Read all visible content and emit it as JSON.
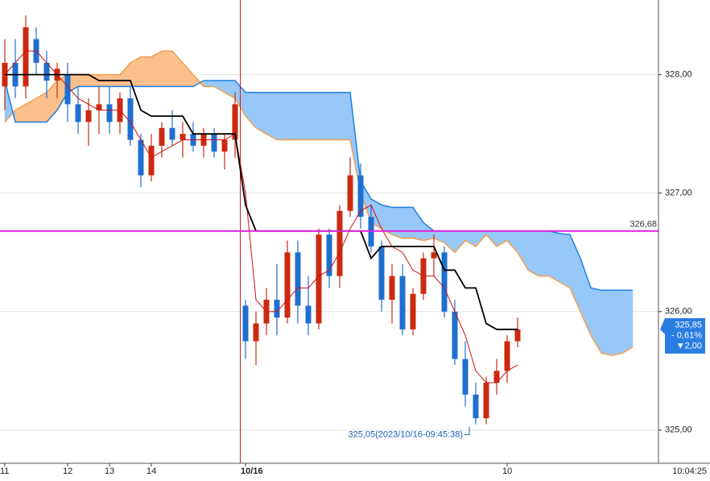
{
  "chart_data": {
    "type": "candlestick",
    "ylim": [
      324.72,
      328.63
    ],
    "yticks": [
      {
        "value": 325,
        "label": "325,00"
      },
      {
        "value": 326,
        "label": "326,00"
      },
      {
        "value": 327,
        "label": "327,00"
      },
      {
        "value": 328,
        "label": "328,00"
      }
    ],
    "grid": true,
    "up_color": "#cc2a10",
    "down_color": "#1f6fd1",
    "categories": [
      "11",
      null,
      null,
      null,
      null,
      null,
      "12",
      null,
      null,
      null,
      "13",
      null,
      null,
      null,
      "14",
      null,
      null,
      null,
      null,
      null,
      null,
      null,
      null,
      "10/16",
      null,
      null,
      null,
      null,
      null,
      null,
      null,
      null,
      null,
      null,
      null,
      null,
      null,
      null,
      null,
      null,
      null,
      null,
      null,
      null,
      null,
      null,
      null,
      null,
      "10",
      null
    ],
    "axis_time": "10:04:25",
    "candles": [
      [
        327.9,
        328.3,
        327.7,
        328.1
      ],
      [
        328.1,
        328.3,
        327.8,
        327.9
      ],
      [
        327.9,
        328.5,
        327.8,
        328.4
      ],
      [
        328.3,
        328.4,
        328.0,
        328.1
      ],
      [
        328.1,
        328.2,
        327.8,
        327.95
      ],
      [
        327.95,
        328.1,
        327.8,
        328.05
      ],
      [
        328.0,
        328.1,
        327.6,
        327.75
      ],
      [
        327.75,
        327.9,
        327.5,
        327.6
      ],
      [
        327.6,
        327.8,
        327.4,
        327.7
      ],
      [
        327.7,
        327.9,
        327.5,
        327.75
      ],
      [
        327.75,
        327.9,
        327.5,
        327.6
      ],
      [
        327.6,
        327.85,
        327.5,
        327.8
      ],
      [
        327.8,
        327.9,
        327.4,
        327.45
      ],
      [
        327.45,
        327.5,
        327.05,
        327.15
      ],
      [
        327.15,
        327.5,
        327.1,
        327.4
      ],
      [
        327.4,
        327.6,
        327.3,
        327.55
      ],
      [
        327.55,
        327.7,
        327.4,
        327.45
      ],
      [
        327.45,
        327.6,
        327.3,
        327.5
      ],
      [
        327.5,
        327.6,
        327.35,
        327.4
      ],
      [
        327.4,
        327.55,
        327.3,
        327.5
      ],
      [
        327.5,
        327.55,
        327.3,
        327.35
      ],
      [
        327.35,
        327.5,
        327.2,
        327.45
      ],
      [
        327.45,
        327.85,
        327.3,
        327.75
      ],
      [
        326.05,
        326.1,
        325.6,
        325.75
      ],
      [
        325.75,
        326.0,
        325.55,
        325.9
      ],
      [
        325.9,
        326.2,
        325.8,
        326.1
      ],
      [
        326.1,
        326.4,
        325.8,
        325.95
      ],
      [
        325.95,
        326.6,
        325.9,
        326.5
      ],
      [
        326.5,
        326.6,
        325.9,
        326.05
      ],
      [
        326.05,
        326.3,
        325.8,
        325.9
      ],
      [
        325.9,
        326.7,
        325.85,
        326.65
      ],
      [
        326.65,
        326.7,
        326.2,
        326.3
      ],
      [
        326.3,
        326.9,
        326.2,
        326.85
      ],
      [
        326.85,
        327.3,
        326.8,
        327.15
      ],
      [
        327.15,
        327.25,
        326.7,
        326.8
      ],
      [
        326.8,
        326.9,
        326.5,
        326.55
      ],
      [
        326.55,
        326.6,
        326.0,
        326.1
      ],
      [
        326.1,
        326.4,
        325.9,
        326.3
      ],
      [
        326.3,
        326.4,
        325.8,
        325.85
      ],
      [
        325.85,
        326.2,
        325.8,
        326.15
      ],
      [
        326.15,
        326.5,
        326.1,
        326.45
      ],
      [
        326.45,
        326.65,
        326.3,
        326.5
      ],
      [
        326.5,
        326.55,
        325.95,
        326.0
      ],
      [
        326.0,
        326.1,
        325.55,
        325.6
      ],
      [
        325.6,
        325.75,
        325.2,
        325.3
      ],
      [
        325.3,
        325.4,
        325.05,
        325.1
      ],
      [
        325.1,
        325.45,
        325.05,
        325.4
      ],
      [
        325.4,
        325.6,
        325.3,
        325.5
      ],
      [
        325.5,
        325.8,
        325.4,
        325.75
      ],
      [
        325.75,
        325.95,
        325.7,
        325.85
      ]
    ],
    "lines": [
      {
        "color": "#d01010",
        "values": [
          328.0,
          328.1,
          328.2,
          328.2,
          328.1,
          328.0,
          327.9,
          327.8,
          327.75,
          327.7,
          327.7,
          327.7,
          327.6,
          327.45,
          327.3,
          327.35,
          327.4,
          327.45,
          327.45,
          327.45,
          327.45,
          327.45,
          327.5,
          327.0,
          326.1,
          326.0,
          326.0,
          326.1,
          326.2,
          326.2,
          326.3,
          326.35,
          326.5,
          326.7,
          326.85,
          326.9,
          326.7,
          326.55,
          326.5,
          326.35,
          326.3,
          326.3,
          326.2,
          326.0,
          325.8,
          325.5,
          325.4,
          325.4,
          325.5,
          325.55
        ]
      },
      {
        "color": "#000000",
        "values": [
          328.0,
          328.0,
          328.0,
          328.0,
          328.0,
          328.0,
          328.0,
          328.0,
          328.0,
          327.95,
          327.95,
          327.95,
          327.95,
          327.7,
          327.65,
          327.65,
          327.65,
          327.65,
          327.5,
          327.5,
          327.5,
          327.5,
          327.5,
          326.9,
          326.68,
          326.68,
          326.68,
          326.68,
          326.68,
          326.68,
          326.68,
          326.68,
          326.68,
          326.68,
          326.68,
          326.45,
          326.55,
          326.55,
          326.55,
          326.55,
          326.55,
          326.55,
          326.35,
          326.35,
          326.2,
          326.2,
          325.9,
          325.85,
          325.85,
          325.85
        ]
      }
    ],
    "cloud": {
      "span_a": {
        "color": "#f0a050",
        "values": [
          327.6,
          327.7,
          327.75,
          327.8,
          327.85,
          327.95,
          328.0,
          328.0,
          328.0,
          328.0,
          328.0,
          328.0,
          328.1,
          328.15,
          328.15,
          328.2,
          328.2,
          328.1,
          328.0,
          327.9,
          327.9,
          327.85,
          327.8,
          327.65,
          327.55,
          327.5,
          327.45,
          327.45,
          327.45,
          327.45,
          327.45,
          327.45,
          327.45,
          327.45,
          327.0,
          326.75,
          326.7,
          326.65,
          326.62,
          326.62,
          326.6,
          326.62,
          326.58,
          326.5,
          326.6,
          326.55,
          326.65,
          326.55,
          326.6,
          326.5,
          326.35,
          326.3,
          326.3,
          326.25,
          326.2,
          326.0,
          325.8,
          325.65,
          325.63,
          325.65,
          325.7
        ]
      },
      "span_b": {
        "color": "#1f80e0",
        "values": [
          327.95,
          327.6,
          327.6,
          327.6,
          327.6,
          327.7,
          327.85,
          327.9,
          327.9,
          327.9,
          327.9,
          327.9,
          327.9,
          327.9,
          327.9,
          327.9,
          327.9,
          327.9,
          327.9,
          327.95,
          327.95,
          327.95,
          327.95,
          327.85,
          327.85,
          327.85,
          327.85,
          327.85,
          327.85,
          327.85,
          327.85,
          327.85,
          327.85,
          327.85,
          327.1,
          326.95,
          326.9,
          326.88,
          326.88,
          326.88,
          326.75,
          326.68,
          326.68,
          326.68,
          326.68,
          326.68,
          326.68,
          326.68,
          326.68,
          326.68,
          326.68,
          326.68,
          326.68,
          326.66,
          326.65,
          326.45,
          326.2,
          326.18,
          326.18,
          326.18,
          326.18
        ]
      },
      "fill_a": "#fbc08c",
      "fill_b": "#98c8f8"
    },
    "hline": {
      "value": 326.68,
      "label": "326,68",
      "color": "#e020e0"
    },
    "vline": {
      "category": "10/16",
      "color": "#c82020"
    },
    "last": {
      "value": 325.85,
      "label": "325,85",
      "change": "- 0,61%",
      "diff": "▼2,00",
      "color": "#2a7de1"
    },
    "low": {
      "value": 325.05,
      "label": "325,05(2023/10/16-09:45:38)",
      "color": "#1f5fb0"
    }
  }
}
